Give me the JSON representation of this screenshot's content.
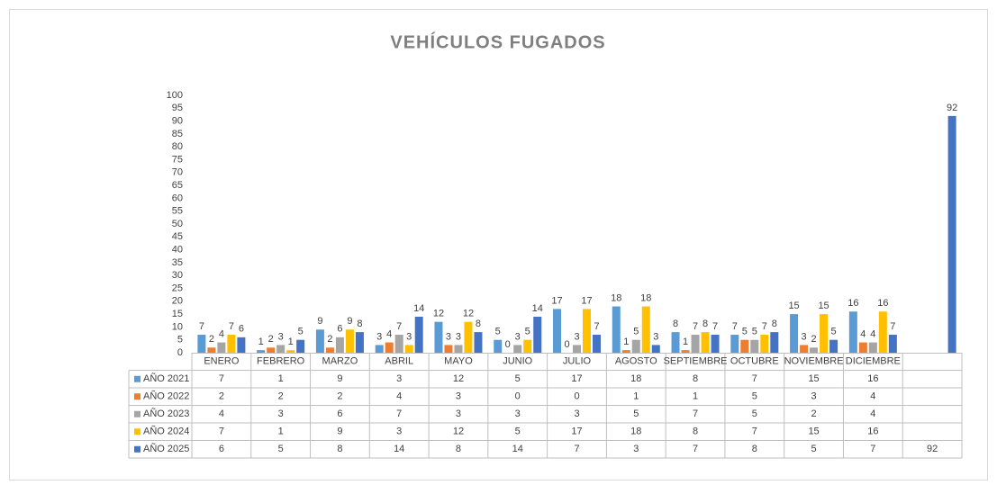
{
  "chart_data": {
    "type": "bar",
    "title": "VEHÍCULOS FUGADOS",
    "categories": [
      "ENERO",
      "FEBRERO",
      "MARZO",
      "ABRIL",
      "MAYO",
      "JUNIO",
      "JULIO",
      "AGOSTO",
      "SEPTIEMBRE",
      "OCTUBRE",
      "NOVIEMBRE",
      "DICIEMBRE",
      null
    ],
    "series": [
      {
        "name": "AÑO 2021",
        "color": "#5b9bd5",
        "values": [
          7,
          1,
          9,
          3,
          12,
          5,
          17,
          18,
          8,
          7,
          15,
          16,
          null
        ]
      },
      {
        "name": "AÑO 2022",
        "color": "#ed7d31",
        "values": [
          2,
          2,
          2,
          4,
          3,
          0,
          0,
          1,
          1,
          5,
          3,
          4,
          null
        ]
      },
      {
        "name": "AÑO 2023",
        "color": "#a5a5a5",
        "values": [
          4,
          3,
          6,
          7,
          3,
          3,
          3,
          5,
          7,
          5,
          2,
          4,
          null
        ]
      },
      {
        "name": "AÑO 2024",
        "color": "#ffc000",
        "values": [
          7,
          1,
          9,
          3,
          12,
          5,
          17,
          18,
          8,
          7,
          15,
          16,
          null
        ]
      },
      {
        "name": "AÑO 2025",
        "color": "#4472c4",
        "values": [
          6,
          5,
          8,
          14,
          8,
          14,
          7,
          3,
          7,
          8,
          5,
          7,
          92
        ]
      }
    ],
    "ylim": [
      0,
      100
    ],
    "yticks": [
      0,
      5,
      10,
      15,
      20,
      25,
      30,
      35,
      40,
      45,
      50,
      55,
      60,
      65,
      70,
      75,
      80,
      85,
      90,
      95,
      100
    ],
    "grid": false
  }
}
